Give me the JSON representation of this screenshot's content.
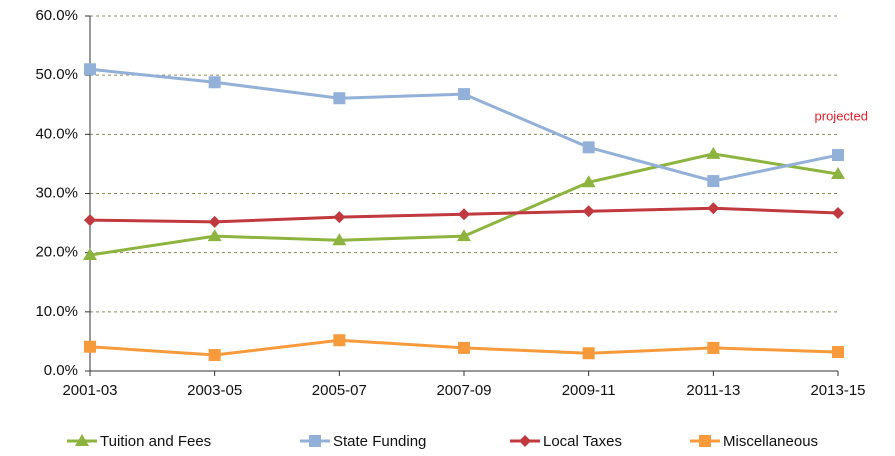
{
  "chart_data": {
    "type": "line",
    "categories": [
      "2001-03",
      "2003-05",
      "2005-07",
      "2007-09",
      "2009-11",
      "2011-13",
      "2013-15"
    ],
    "series": [
      {
        "name": "Tuition and Fees",
        "color": "#8db43e",
        "marker": "triangle",
        "values": [
          19.6,
          22.8,
          22.1,
          22.8,
          31.9,
          36.7,
          33.3
        ]
      },
      {
        "name": "State Funding",
        "color": "#93b0d9",
        "marker": "square",
        "values": [
          51.0,
          48.8,
          46.1,
          46.8,
          37.8,
          32.1,
          36.5
        ]
      },
      {
        "name": "Local Taxes",
        "color": "#c0393e",
        "marker": "diamond",
        "values": [
          25.5,
          25.2,
          26.0,
          26.5,
          27.0,
          27.5,
          26.7
        ]
      },
      {
        "name": "Miscellaneous",
        "color": "#f79a3c",
        "marker": "square",
        "values": [
          4.1,
          2.7,
          5.2,
          3.9,
          3.0,
          3.9,
          3.2
        ]
      }
    ],
    "ylim": [
      0,
      60
    ],
    "yticks": [
      {
        "value": 0,
        "label": "0.0%"
      },
      {
        "value": 10,
        "label": "10.0%"
      },
      {
        "value": 20,
        "label": "20.0%"
      },
      {
        "value": 30,
        "label": "30.0%"
      },
      {
        "value": 40,
        "label": "40.0%"
      },
      {
        "value": 50,
        "label": "50.0%"
      },
      {
        "value": 60,
        "label": "60.0%"
      }
    ],
    "grid": true,
    "annotation": {
      "text": "projected",
      "color": "#e8202a"
    },
    "legend": "bottom"
  }
}
